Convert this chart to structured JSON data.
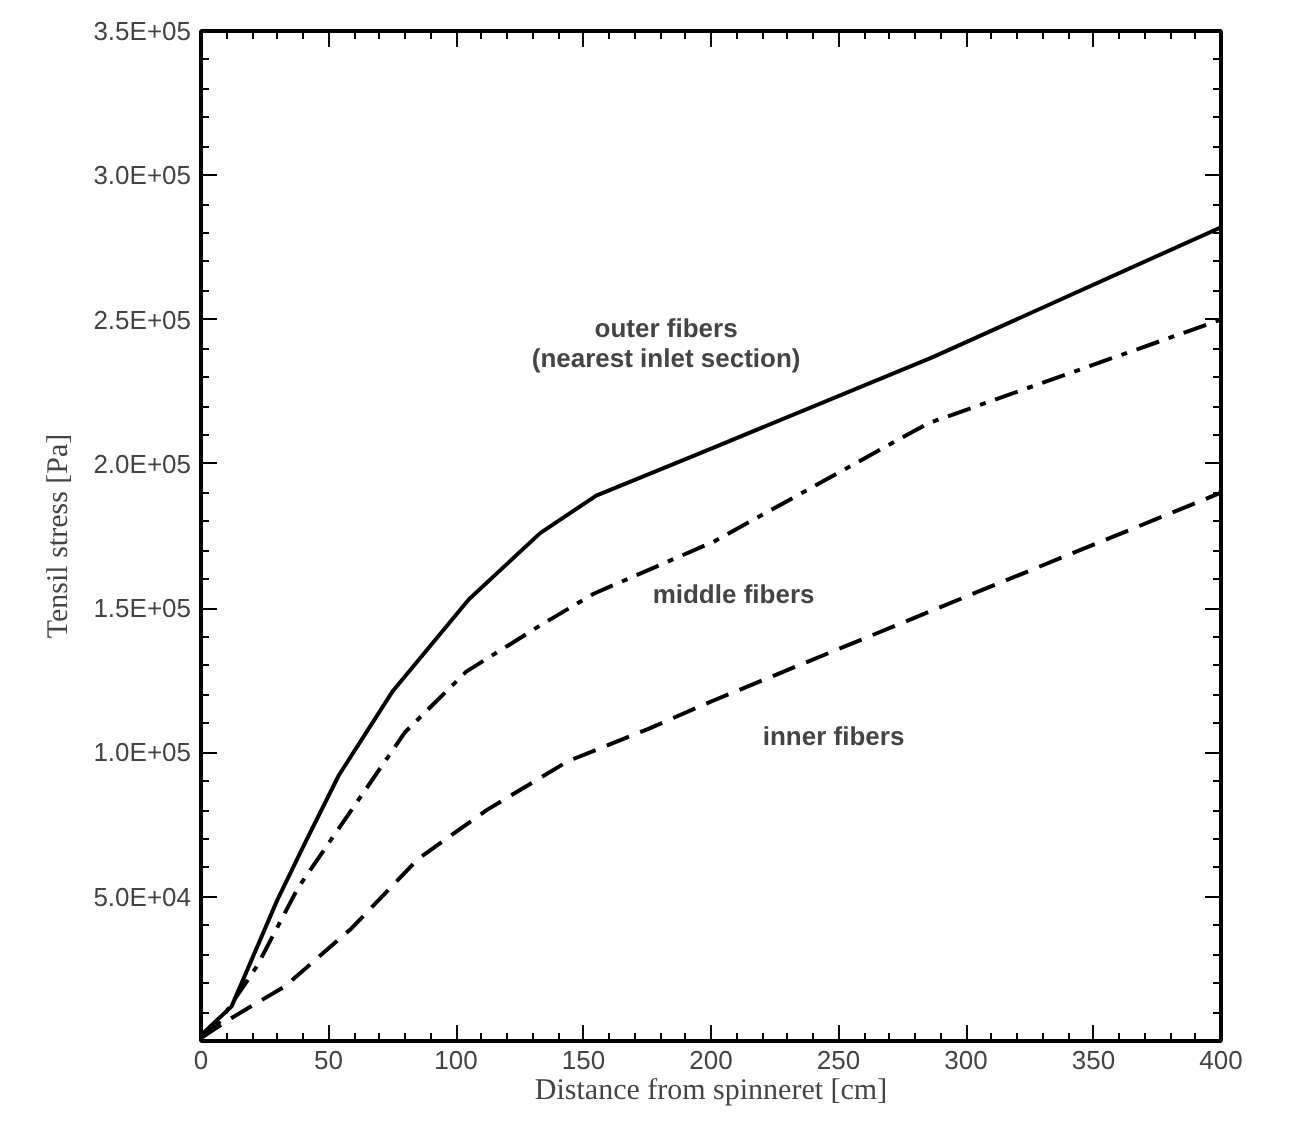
{
  "chart_data": {
    "type": "line",
    "xlabel": "Distance from spinneret [cm]",
    "ylabel": "Tensil stress [Pa]",
    "xlim": [
      0,
      400
    ],
    "xticks": [
      0,
      50,
      100,
      150,
      200,
      250,
      300,
      350,
      400
    ],
    "ylim": [
      0,
      350000
    ],
    "yticks": [
      {
        "value": 50000,
        "label": "5.0E+04"
      },
      {
        "value": 100000,
        "label": "1.0E+05"
      },
      {
        "value": 150000,
        "label": "1.5E+05"
      },
      {
        "value": 200000,
        "label": "2.0E+05"
      },
      {
        "value": 250000,
        "label": "2.5E+05"
      },
      {
        "value": 300000,
        "label": "3.0E+05"
      },
      {
        "value": 350000,
        "label": "3.5E+05"
      }
    ],
    "grid": false,
    "marker": "none",
    "series": [
      {
        "name": "outer fibers\n(nearest inlet section)",
        "color": "#000000",
        "line_style": "solid",
        "x": [
          0,
          12,
          30,
          41,
          54,
          75,
          105,
          133,
          155,
          202,
          287,
          400
        ],
        "values": [
          2000,
          12000,
          49000,
          69000,
          92000,
          121000,
          153000,
          176000,
          189000,
          206000,
          237000,
          282000
        ]
      },
      {
        "name": "middle fibers",
        "color": "#000000",
        "line_style": "dashdot",
        "x": [
          0,
          6,
          22,
          38,
          59,
          80,
          104,
          133,
          154,
          201,
          285,
          400
        ],
        "values": [
          2000,
          5000,
          26000,
          53000,
          80000,
          107000,
          128000,
          144000,
          155000,
          173000,
          214000,
          250000
        ]
      },
      {
        "name": "inner fibers",
        "color": "#000000",
        "line_style": "dashed",
        "x": [
          0,
          12,
          33,
          59,
          85,
          112,
          144,
          175,
          201,
          300,
          400
        ],
        "values": [
          1000,
          8000,
          19000,
          39000,
          63000,
          80000,
          97000,
          108000,
          118000,
          154000,
          190000
        ]
      }
    ]
  }
}
